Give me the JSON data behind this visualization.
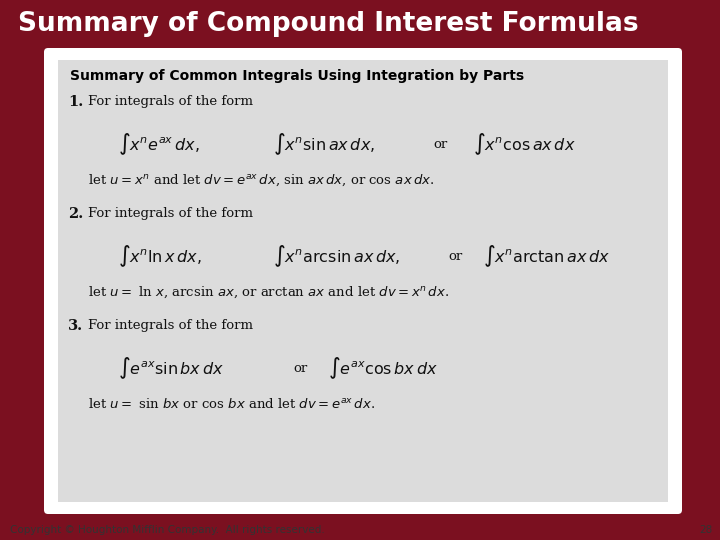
{
  "title": "Summary of Compound Interest Formulas",
  "title_bg_color": "#7B1020",
  "title_text_color": "#FFFFFF",
  "main_bg_color": "#7B1020",
  "box_bg_color": "#DCDCDC",
  "box_outer_bg": "#FFFFFF",
  "footer_text": "Copyright © Houghton Mifflin Company.  All rights reserved.",
  "footer_page": "28",
  "footer_text_color": "#333333",
  "box_title": "Summary of Common Integrals Using Integration by Parts",
  "box_title_color": "#000000"
}
